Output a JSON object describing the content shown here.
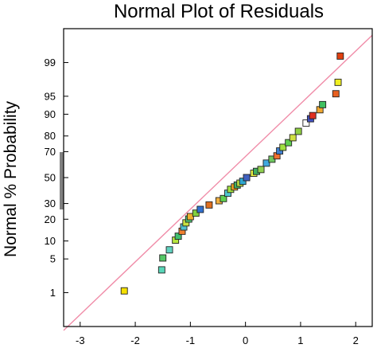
{
  "chart_data": {
    "type": "scatter",
    "title": "Normal Plot of Residuals",
    "ylabel": "Normal % Probability",
    "xlabel": "",
    "xlim": [
      -3.3,
      2.3
    ],
    "x_ticks": [
      -3,
      -2,
      -1,
      0,
      1,
      2
    ],
    "y_scale": "normal-probability",
    "ylim": [
      0.13,
      99.87
    ],
    "y_ticks": [
      1,
      5,
      10,
      20,
      30,
      50,
      70,
      80,
      90,
      95,
      99
    ],
    "grid": false,
    "reference_line": {
      "color": "#f08ca8",
      "from": [
        -3.3,
        0.1
      ],
      "to": [
        2.3,
        99.8
      ]
    },
    "points": [
      {
        "x": -2.2,
        "y": 1.1,
        "color": "#f5e000"
      },
      {
        "x": -1.52,
        "y": 3.1,
        "color": "#58d6b8"
      },
      {
        "x": -1.5,
        "y": 5.2,
        "color": "#55c766"
      },
      {
        "x": -1.38,
        "y": 7.2,
        "color": "#60d2c0"
      },
      {
        "x": -1.27,
        "y": 10.3,
        "color": "#b8e640"
      },
      {
        "x": -1.22,
        "y": 11.8,
        "color": "#40c070"
      },
      {
        "x": -1.15,
        "y": 13.9,
        "color": "#f08030"
      },
      {
        "x": -1.12,
        "y": 15.9,
        "color": "#50c0d0"
      },
      {
        "x": -1.08,
        "y": 18.0,
        "color": "#c8e040"
      },
      {
        "x": -1.03,
        "y": 20.1,
        "color": "#50c870"
      },
      {
        "x": -1.0,
        "y": 21.5,
        "color": "#f0b030"
      },
      {
        "x": -0.9,
        "y": 23.6,
        "color": "#80d040"
      },
      {
        "x": -0.82,
        "y": 26.0,
        "color": "#3070d0"
      },
      {
        "x": -0.66,
        "y": 29.0,
        "color": "#e07020"
      },
      {
        "x": -0.48,
        "y": 32.0,
        "color": "#f0b040"
      },
      {
        "x": -0.4,
        "y": 33.6,
        "color": "#60d050"
      },
      {
        "x": -0.32,
        "y": 37.6,
        "color": "#50c8d0"
      },
      {
        "x": -0.27,
        "y": 40.6,
        "color": "#a0e040"
      },
      {
        "x": -0.2,
        "y": 42.5,
        "color": "#f0a020"
      },
      {
        "x": -0.15,
        "y": 44.0,
        "color": "#40b060"
      },
      {
        "x": -0.1,
        "y": 45.5,
        "color": "#c0e040"
      },
      {
        "x": -0.05,
        "y": 47.0,
        "color": "#30a8d0"
      },
      {
        "x": 0.02,
        "y": 50.0,
        "color": "#4060c0"
      },
      {
        "x": 0.15,
        "y": 53.5,
        "color": "#e8f040"
      },
      {
        "x": 0.2,
        "y": 55.0,
        "color": "#40b060"
      },
      {
        "x": 0.28,
        "y": 56.5,
        "color": "#90d050"
      },
      {
        "x": 0.38,
        "y": 61.5,
        "color": "#40a8e0"
      },
      {
        "x": 0.48,
        "y": 64.5,
        "color": "#70c860"
      },
      {
        "x": 0.57,
        "y": 67.0,
        "color": "#f07030"
      },
      {
        "x": 0.62,
        "y": 70.5,
        "color": "#4080d0"
      },
      {
        "x": 0.68,
        "y": 73.0,
        "color": "#a0e040"
      },
      {
        "x": 0.78,
        "y": 76.0,
        "color": "#60d050"
      },
      {
        "x": 0.86,
        "y": 79.0,
        "color": "#d0e040"
      },
      {
        "x": 0.96,
        "y": 82.5,
        "color": "#90d040"
      },
      {
        "x": 1.1,
        "y": 86.5,
        "color": "#ffffff"
      },
      {
        "x": 1.18,
        "y": 88.3,
        "color": "#4050c0"
      },
      {
        "x": 1.22,
        "y": 89.5,
        "color": "#e03020"
      },
      {
        "x": 1.35,
        "y": 91.5,
        "color": "#f0a830"
      },
      {
        "x": 1.4,
        "y": 93.0,
        "color": "#40c060"
      },
      {
        "x": 1.64,
        "y": 95.5,
        "color": "#e86020"
      },
      {
        "x": 1.68,
        "y": 97.3,
        "color": "#f0f020"
      },
      {
        "x": 1.72,
        "y": 99.3,
        "color": "#e04010"
      }
    ]
  }
}
